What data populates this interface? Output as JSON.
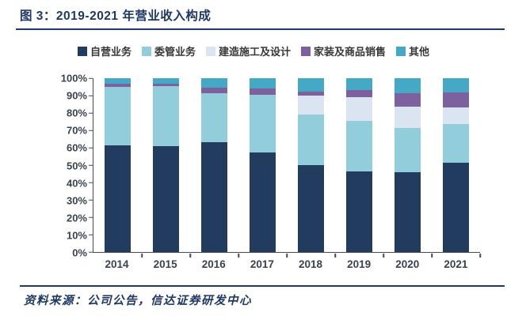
{
  "page": {
    "title": "图 3：2019-2021 年营业收入构成",
    "source": "资料来源：公司公告，信达证券研发中心"
  },
  "colors": {
    "title_navy": "#1f3864",
    "axis": "#4a4a4a",
    "tick_label": "#3a4150"
  },
  "chart_data": {
    "type": "bar",
    "subtype": "stacked-100-percent",
    "title": "图 3：2019-2021 年营业收入构成",
    "xlabel": "",
    "ylabel": "",
    "ylim": [
      0,
      100
    ],
    "grid": false,
    "legend_position": "top",
    "categories": [
      "2014",
      "2015",
      "2016",
      "2017",
      "2018",
      "2019",
      "2020",
      "2021"
    ],
    "yticks": [
      "0%",
      "10%",
      "20%",
      "30%",
      "40%",
      "50%",
      "60%",
      "70%",
      "80%",
      "90%",
      "100%"
    ],
    "series": [
      {
        "name": "自营业务",
        "color": "#223c5f",
        "values": [
          61.5,
          61.0,
          63.0,
          57.5,
          50.0,
          46.5,
          46.0,
          51.5
        ]
      },
      {
        "name": "委管业务",
        "color": "#92cddc",
        "values": [
          33.5,
          34.5,
          28.5,
          33.0,
          29.0,
          29.0,
          25.5,
          22.0
        ]
      },
      {
        "name": "建造施工及设计",
        "color": "#dbe5f1",
        "values": [
          0.0,
          0.0,
          0.0,
          0.0,
          11.0,
          13.5,
          12.0,
          9.5
        ]
      },
      {
        "name": "家装及商品销售",
        "color": "#7c619e",
        "values": [
          2.0,
          1.5,
          3.0,
          3.5,
          2.5,
          4.0,
          8.0,
          9.0
        ]
      },
      {
        "name": "其他",
        "color": "#45a9c5",
        "values": [
          3.0,
          3.0,
          5.5,
          6.0,
          7.5,
          7.0,
          8.5,
          8.0
        ]
      }
    ]
  }
}
